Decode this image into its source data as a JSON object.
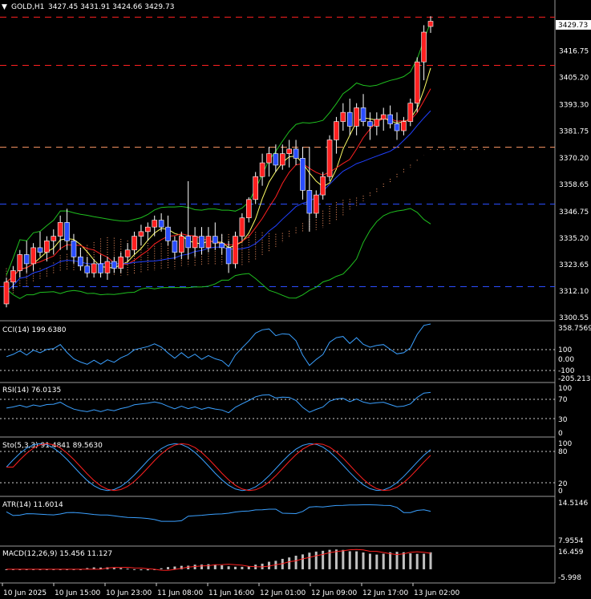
{
  "chart_header": {
    "symbol": "GOLD,H1",
    "ohlc": "3427.45 3431.91 3424.66 3429.73",
    "toggle_glyph": "▼"
  },
  "colors": {
    "bg": "#000000",
    "bull": "#ff2020",
    "bear": "#2a4dff",
    "grid": "#ffffff",
    "bb": "#1fbf1f",
    "ichimoku_cloud": "#ff9966",
    "ma_fast": "#ffff66",
    "ma_red": "#ff2020",
    "ma_blue": "#2040ff",
    "osc": "#3aa0ff",
    "stoch_signal": "#ff2020",
    "macd_hist": "#c0c0c0",
    "macd_signal": "#ff2020"
  },
  "price_axis": {
    "labels": [
      "3416.75",
      "3405.20",
      "3393.30",
      "3381.75",
      "3370.20",
      "3358.65",
      "3346.75",
      "3335.20",
      "3323.65",
      "3312.10",
      "3300.55"
    ],
    "current_price": "3429.73"
  },
  "horizontal_levels": [
    {
      "price": 3431.5,
      "color": "#ff2020",
      "style": "dashed"
    },
    {
      "price": 3410.5,
      "color": "#ff2020",
      "style": "dashed"
    },
    {
      "price": 3374.8,
      "color": "#ff9966",
      "style": "dashed"
    },
    {
      "price": 3350.0,
      "color": "#2a4dff",
      "style": "dashed"
    },
    {
      "price": 3314.0,
      "color": "#2a4dff",
      "style": "dashed"
    }
  ],
  "time_axis": {
    "labels": [
      "10 Jun 2025",
      "10 Jun 15:00",
      "10 Jun 23:00",
      "11 Jun 08:00",
      "11 Jun 16:00",
      "12 Jun 01:00",
      "12 Jun 09:00",
      "12 Jun 17:00",
      "13 Jun 02:00"
    ]
  },
  "indicators": {
    "cci": {
      "label": "CCI(14) 199.6380",
      "axis": [
        "358.7569",
        "100",
        "0.00",
        "-100",
        "-205.2135"
      ]
    },
    "rsi": {
      "label": "RSI(14) 76.0135",
      "axis": [
        "100",
        "70",
        "30",
        "0"
      ]
    },
    "stoch": {
      "label": "Sto(5,3,3) 91.4841 89.5630",
      "axis": [
        "100",
        "80",
        "20",
        "0"
      ]
    },
    "atr": {
      "label": "ATR(14) 11.6014",
      "axis": [
        "14.5146",
        "7.9554"
      ]
    },
    "macd": {
      "label": "MACD(12,26,9) 15.456 11.127",
      "axis": [
        "16.459",
        "-5.998"
      ]
    }
  },
  "chart_data": {
    "type": "candlestick",
    "symbol": "GOLD",
    "timeframe": "H1",
    "ylim": [
      3300.55,
      3432
    ],
    "candles": [
      [
        3306.5,
        3318,
        3305,
        3316
      ],
      [
        3316,
        3323,
        3313,
        3321
      ],
      [
        3321,
        3330,
        3318,
        3328
      ],
      [
        3328,
        3334,
        3320,
        3324
      ],
      [
        3324,
        3333,
        3321,
        3331
      ],
      [
        3331,
        3338,
        3327,
        3329
      ],
      [
        3329,
        3336,
        3325,
        3334
      ],
      [
        3334,
        3339,
        3328,
        3336
      ],
      [
        3336,
        3345,
        3330,
        3342
      ],
      [
        3342,
        3348,
        3330,
        3334
      ],
      [
        3334,
        3337,
        3324,
        3327
      ],
      [
        3327,
        3331,
        3321,
        3323
      ],
      [
        3323,
        3327,
        3318,
        3320
      ],
      [
        3320,
        3326,
        3318,
        3324
      ],
      [
        3324,
        3328,
        3318,
        3320
      ],
      [
        3320,
        3327,
        3317,
        3325
      ],
      [
        3325,
        3327,
        3320,
        3322
      ],
      [
        3322,
        3329,
        3320,
        3327
      ],
      [
        3327,
        3333,
        3325,
        3330
      ],
      [
        3330,
        3338,
        3328,
        3336
      ],
      [
        3336,
        3341,
        3332,
        3338
      ],
      [
        3338,
        3342,
        3334,
        3340
      ],
      [
        3340,
        3345,
        3336,
        3343
      ],
      [
        3343,
        3346,
        3338,
        3340
      ],
      [
        3340,
        3345,
        3332,
        3334
      ],
      [
        3334,
        3336,
        3326,
        3329
      ],
      [
        3329,
        3338,
        3326,
        3336
      ],
      [
        3336,
        3360,
        3326,
        3331
      ],
      [
        3331,
        3340,
        3327,
        3336
      ],
      [
        3336,
        3340,
        3328,
        3331
      ],
      [
        3331,
        3340,
        3329,
        3336
      ],
      [
        3336,
        3342,
        3330,
        3333
      ],
      [
        3333,
        3337,
        3328,
        3331
      ],
      [
        3331,
        3334,
        3320,
        3324
      ],
      [
        3324,
        3338,
        3322,
        3336
      ],
      [
        3336,
        3346,
        3334,
        3344
      ],
      [
        3344,
        3353,
        3342,
        3352
      ],
      [
        3352,
        3364,
        3350,
        3362
      ],
      [
        3362,
        3372,
        3358,
        3368
      ],
      [
        3368,
        3375,
        3362,
        3372
      ],
      [
        3372,
        3376,
        3364,
        3367
      ],
      [
        3367,
        3376,
        3365,
        3372
      ],
      [
        3372,
        3378,
        3366,
        3374
      ],
      [
        3374,
        3378,
        3367,
        3370
      ],
      [
        3370,
        3375,
        3352,
        3356
      ],
      [
        3356,
        3375,
        3338,
        3346
      ],
      [
        3346,
        3356,
        3344,
        3354
      ],
      [
        3354,
        3364,
        3352,
        3362
      ],
      [
        3362,
        3380,
        3360,
        3378
      ],
      [
        3378,
        3388,
        3372,
        3386
      ],
      [
        3386,
        3394,
        3382,
        3390
      ],
      [
        3390,
        3396,
        3380,
        3384
      ],
      [
        3384,
        3394,
        3380,
        3392
      ],
      [
        3392,
        3398,
        3384,
        3386
      ],
      [
        3386,
        3390,
        3378,
        3384
      ],
      [
        3384,
        3390,
        3380,
        3387
      ],
      [
        3387,
        3392,
        3382,
        3389
      ],
      [
        3389,
        3393,
        3383,
        3385
      ],
      [
        3385,
        3390,
        3378,
        3382
      ],
      [
        3382,
        3388,
        3380,
        3386
      ],
      [
        3386,
        3396,
        3384,
        3394
      ],
      [
        3394,
        3414,
        3390,
        3412
      ],
      [
        3412,
        3428,
        3404,
        3425
      ],
      [
        3427.45,
        3431.91,
        3424.66,
        3429.73
      ]
    ]
  }
}
